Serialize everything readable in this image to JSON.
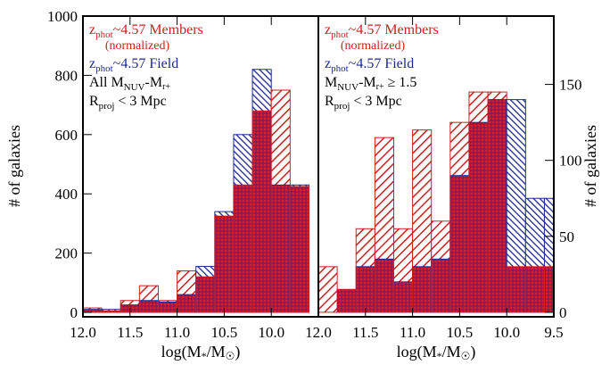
{
  "colors": {
    "members": "#cc1f1f",
    "field": "#1c2a8c",
    "axis": "#000000"
  },
  "chart_data": [
    {
      "type": "bar",
      "panel": "left",
      "xlabel": "log(M*/M☉)",
      "xlabel_parts": {
        "a": "log(M",
        "b": "*",
        "c": "/M",
        "d": "☉",
        "e": ")"
      },
      "ylabel": "# of galaxies",
      "xlim": [
        12.0,
        9.5
      ],
      "ylim": [
        -15,
        1000
      ],
      "xtick_values": [
        12.0,
        11.5,
        11.0,
        10.5,
        10.0
      ],
      "xtick_labels": [
        "12.0",
        "11.5",
        "11.0",
        "10.5",
        "10.0"
      ],
      "ytick_values": [
        0,
        200,
        400,
        600,
        800,
        1000
      ],
      "ytick_labels": [
        "0",
        "200",
        "400",
        "600",
        "800",
        "1000"
      ],
      "bin_edges": [
        12.0,
        11.8,
        11.6,
        11.4,
        11.2,
        11.0,
        10.8,
        10.6,
        10.4,
        10.2,
        10.0,
        9.8,
        9.6
      ],
      "series": [
        {
          "name": "zphot~4.57 Field",
          "key": "field",
          "values": [
            10,
            10,
            25,
            40,
            35,
            60,
            155,
            340,
            600,
            820,
            430,
            430
          ]
        },
        {
          "name": "zphot~4.57 Members (normalized)",
          "key": "members",
          "values": [
            15,
            5,
            40,
            90,
            40,
            140,
            120,
            325,
            430,
            680,
            750,
            425
          ]
        }
      ],
      "annotations": {
        "members_line1": {
          "z": "z",
          "sub": "phot",
          "rest": "~4.57 Members"
        },
        "members_line2": "(normalized)",
        "field_line": {
          "z": "z",
          "sub": "phot",
          "rest": "~4.57 Field"
        },
        "color_line": {
          "a": "All M",
          "b": "NUV",
          "c": "-M",
          "d": "r+",
          "e": ""
        },
        "rproj_line": {
          "a": "R",
          "b": "proj",
          "c": " < 3 Mpc"
        }
      }
    },
    {
      "type": "bar",
      "panel": "right",
      "xlabel": "log(M*/M☉)",
      "xlabel_parts": {
        "a": "log(M",
        "b": "*",
        "c": "/M",
        "d": "☉",
        "e": ")"
      },
      "ylabel": "# of galaxies",
      "xlim": [
        12.0,
        9.5
      ],
      "ylim": [
        -3,
        195
      ],
      "xtick_values": [
        11.5,
        11.0,
        10.5,
        10.0,
        9.5
      ],
      "xtick_labels": [
        "11.5",
        "11.0",
        "10.5",
        "10.0",
        "9.5"
      ],
      "ytick_values": [
        0,
        50,
        100,
        150
      ],
      "ytick_labels": [
        "0",
        "50",
        "100",
        "150"
      ],
      "bin_edges": [
        12.0,
        11.8,
        11.6,
        11.4,
        11.2,
        11.0,
        10.8,
        10.6,
        10.4,
        10.2,
        10.0,
        9.8,
        9.6,
        9.4
      ],
      "series": [
        {
          "name": "zphot~4.57 Field",
          "key": "field",
          "values": [
            0,
            15,
            30,
            35,
            20,
            30,
            35,
            90,
            125,
            140,
            140,
            75,
            75
          ]
        },
        {
          "name": "zphot~4.57 Members (normalized)",
          "key": "members",
          "values": [
            30,
            15,
            55,
            115,
            55,
            120,
            60,
            125,
            145,
            145,
            30,
            30,
            30
          ]
        }
      ],
      "annotations": {
        "members_line1": {
          "z": "z",
          "sub": "phot",
          "rest": "~4.57 Members"
        },
        "members_line2": "(normalized)",
        "field_line": {
          "z": "z",
          "sub": "phot",
          "rest": "~4.57 Field"
        },
        "color_line": {
          "a": "M",
          "b": "NUV",
          "c": "-M",
          "d": "r+",
          "e": " ≥ 1.5"
        },
        "rproj_line": {
          "a": "R",
          "b": "proj",
          "c": " < 3 Mpc"
        }
      }
    }
  ]
}
